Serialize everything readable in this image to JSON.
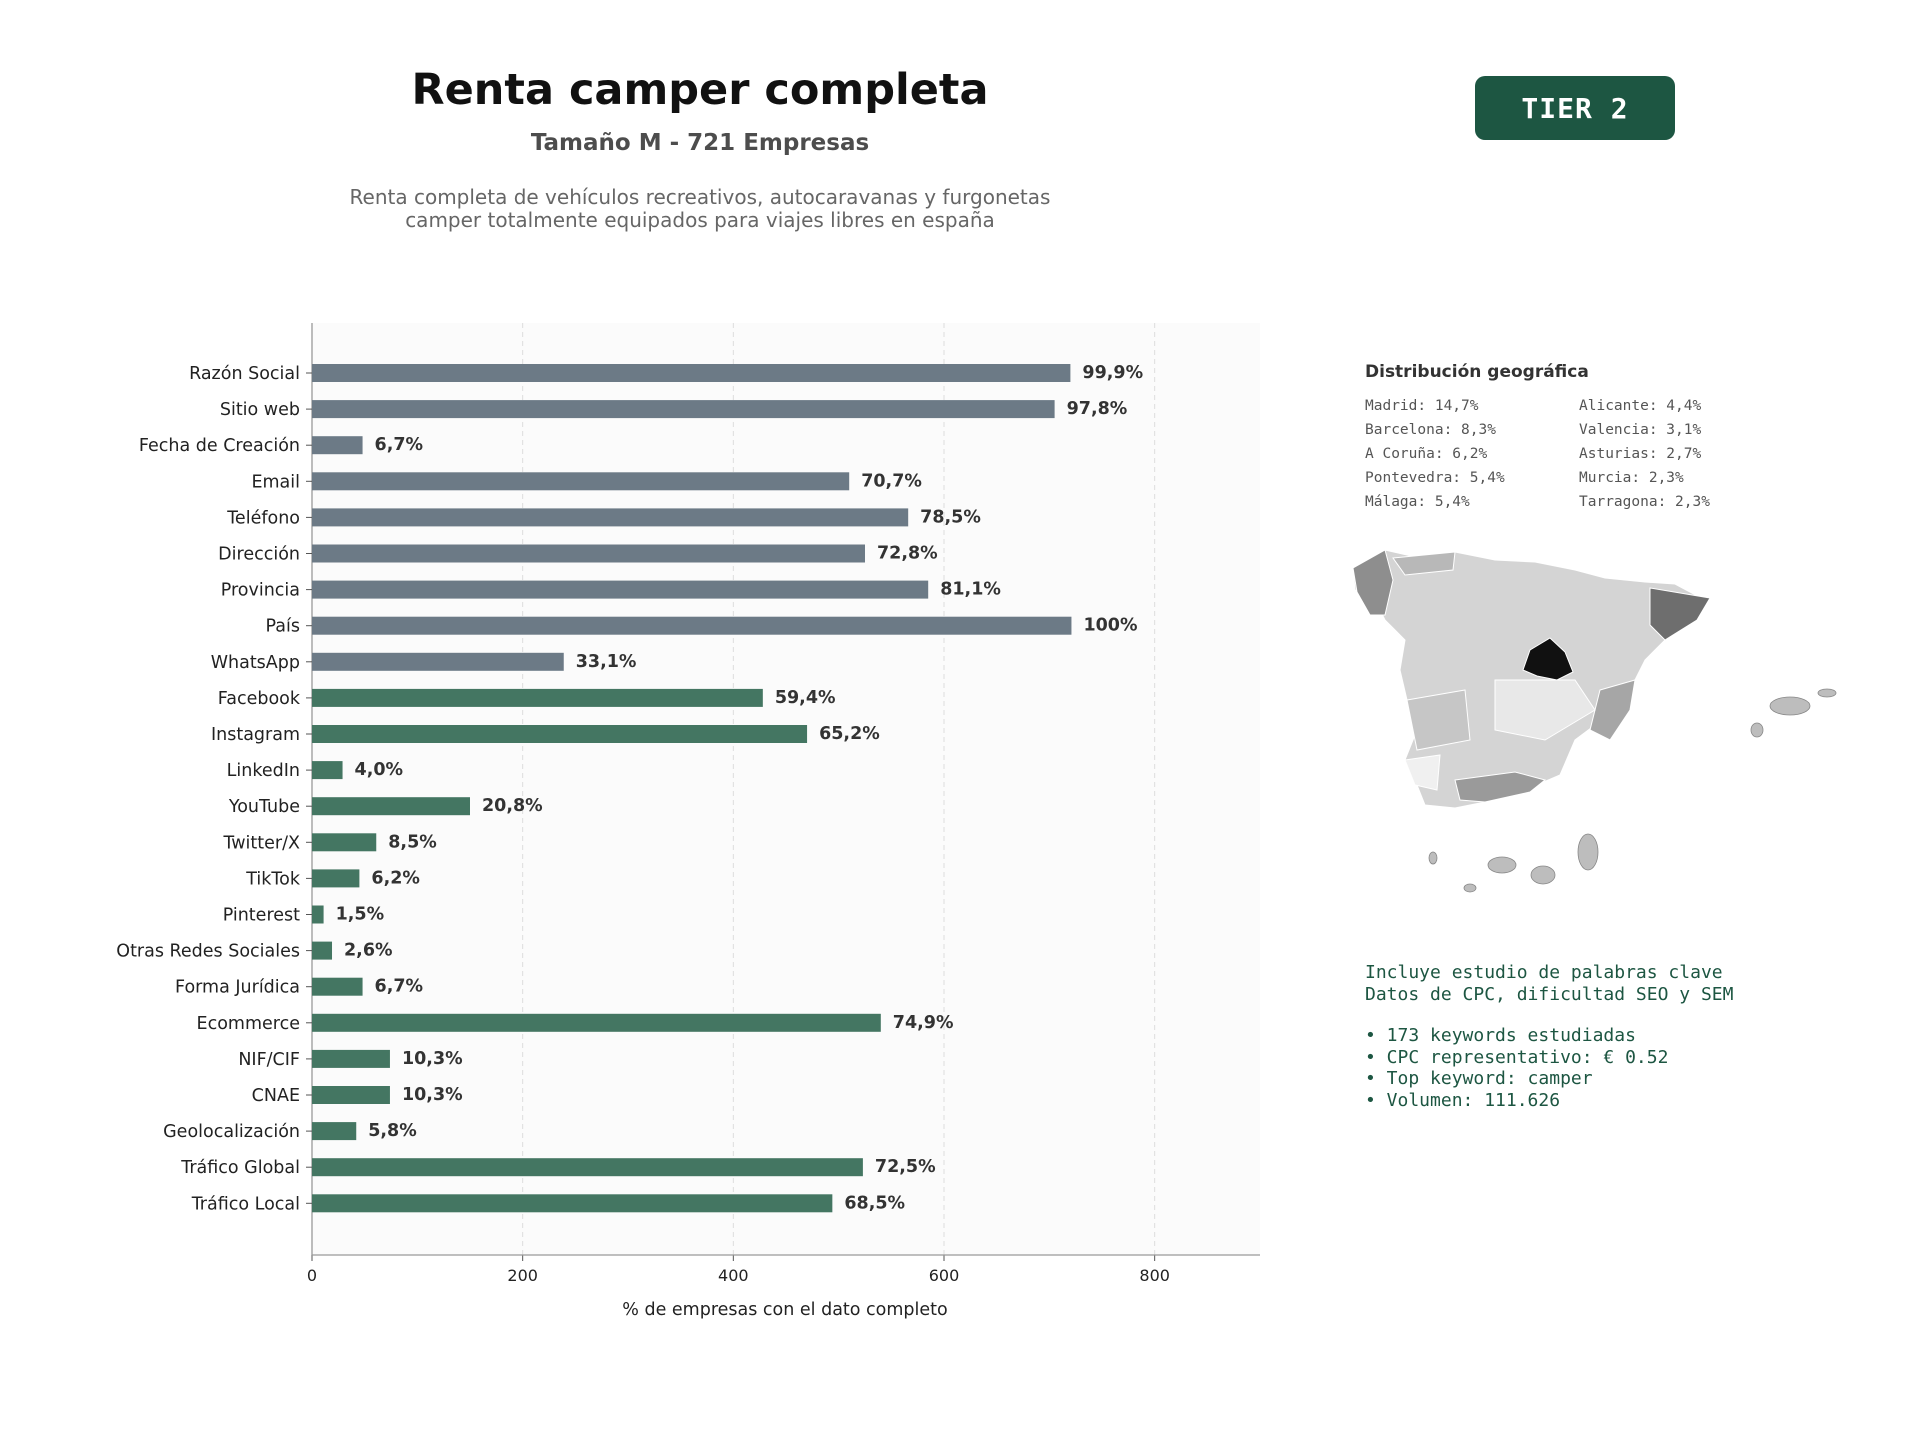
{
  "header": {
    "title": "Renta camper completa",
    "subtitle": "Tamaño M - 721 Empresas",
    "description": "Renta completa de vehículos recreativos, autocaravanas y furgonetas\ncamper totalmente equipados para viajes libres en españa"
  },
  "badge": {
    "label": "TIER 2"
  },
  "colors": {
    "gray_bar": "#6c7a86",
    "green_bar": "#447662",
    "accent": "#1d5642"
  },
  "chart_data": {
    "type": "bar",
    "orientation": "horizontal",
    "xlabel": "% de empresas con el dato completo",
    "xlim": [
      0,
      900
    ],
    "xticks": [
      0,
      200,
      400,
      600,
      800
    ],
    "grid": true,
    "categories": [
      "Razón Social",
      "Sitio web",
      "Fecha de Creación",
      "Email",
      "Teléfono",
      "Dirección",
      "Provincia",
      "País",
      "WhatsApp",
      "Facebook",
      "Instagram",
      "LinkedIn",
      "YouTube",
      "Twitter/X",
      "TikTok",
      "Pinterest",
      "Otras Redes Sociales",
      "Forma Jurídica",
      "Ecommerce",
      "NIF/CIF",
      "CNAE",
      "Geolocalización",
      "Tráfico Global",
      "Tráfico Local"
    ],
    "values": [
      720,
      705,
      48,
      510,
      566,
      525,
      585,
      721,
      239,
      428,
      470,
      29,
      150,
      61,
      45,
      11,
      19,
      48,
      540,
      74,
      74,
      42,
      523,
      494
    ],
    "labels": [
      "99,9%",
      "97,8%",
      "6,7%",
      "70,7%",
      "78,5%",
      "72,8%",
      "81,1%",
      "100%",
      "33,1%",
      "59,4%",
      "65,2%",
      "4,0%",
      "20,8%",
      "8,5%",
      "6,2%",
      "1,5%",
      "2,6%",
      "6,7%",
      "74,9%",
      "10,3%",
      "10,3%",
      "5,8%",
      "72,5%",
      "68,5%"
    ],
    "groups": [
      "gray",
      "gray",
      "gray",
      "gray",
      "gray",
      "gray",
      "gray",
      "gray",
      "gray",
      "green",
      "green",
      "green",
      "green",
      "green",
      "green",
      "green",
      "green",
      "green",
      "green",
      "green",
      "green",
      "green",
      "green",
      "green"
    ]
  },
  "geo": {
    "title": "Distribución geográfica",
    "items": [
      "Madrid: 14,7%",
      "Alicante: 4,4%",
      "Barcelona: 8,3%",
      "Valencia: 3,1%",
      "A Coruña: 6,2%",
      "Asturias: 2,7%",
      "Pontevedra: 5,4%",
      "Murcia: 2,3%",
      "Málaga: 5,4%",
      "Tarragona: 2,3%"
    ]
  },
  "keywords": {
    "intro1": "Incluye estudio de palabras clave",
    "intro2": "Datos de CPC, dificultad SEO y SEM",
    "bullet1": "• 173 keywords estudiadas",
    "bullet2": "• CPC representativo: € 0.52",
    "bullet3": "• Top keyword: camper",
    "bullet4": "• Volumen: 111.626"
  }
}
